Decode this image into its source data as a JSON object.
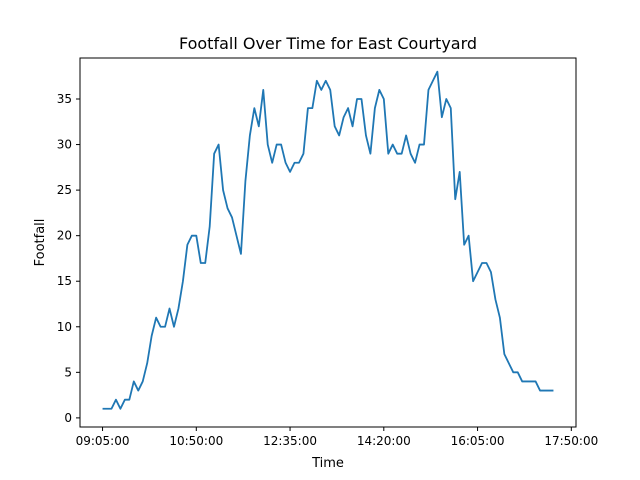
{
  "chart_data": {
    "type": "line",
    "title": "Footfall Over Time for East Courtyard",
    "xlabel": "Time",
    "ylabel": "Footfall",
    "x_start": "09:05:00",
    "x_step_minutes": 5,
    "x_ticks": [
      "09:05:00",
      "10:50:00",
      "12:35:00",
      "14:20:00",
      "16:05:00",
      "17:50:00"
    ],
    "y_ticks": [
      0,
      5,
      10,
      15,
      20,
      25,
      30,
      35
    ],
    "ylim": [
      -1,
      39.5
    ],
    "grid": false,
    "legend": "none",
    "series": [
      {
        "color": "#1f77b4",
        "values": [
          1,
          1,
          1,
          2,
          1,
          2,
          2,
          4,
          3,
          4,
          6,
          9,
          11,
          10,
          10,
          12,
          10,
          12,
          15,
          19,
          20,
          20,
          17,
          17,
          21,
          29,
          30,
          25,
          23,
          22,
          20,
          18,
          26,
          31,
          34,
          32,
          36,
          30,
          28,
          30,
          30,
          28,
          27,
          28,
          28,
          29,
          34,
          34,
          37,
          36,
          37,
          36,
          32,
          31,
          33,
          34,
          32,
          35,
          35,
          31,
          29,
          34,
          36,
          35,
          29,
          30,
          29,
          29,
          31,
          29,
          28,
          30,
          30,
          36,
          37,
          38,
          33,
          35,
          34,
          24,
          27,
          19,
          20,
          15,
          16,
          17,
          17,
          16,
          13,
          11,
          7,
          6,
          5,
          5,
          4,
          4,
          4,
          4,
          3,
          3,
          3,
          3
        ]
      }
    ]
  }
}
